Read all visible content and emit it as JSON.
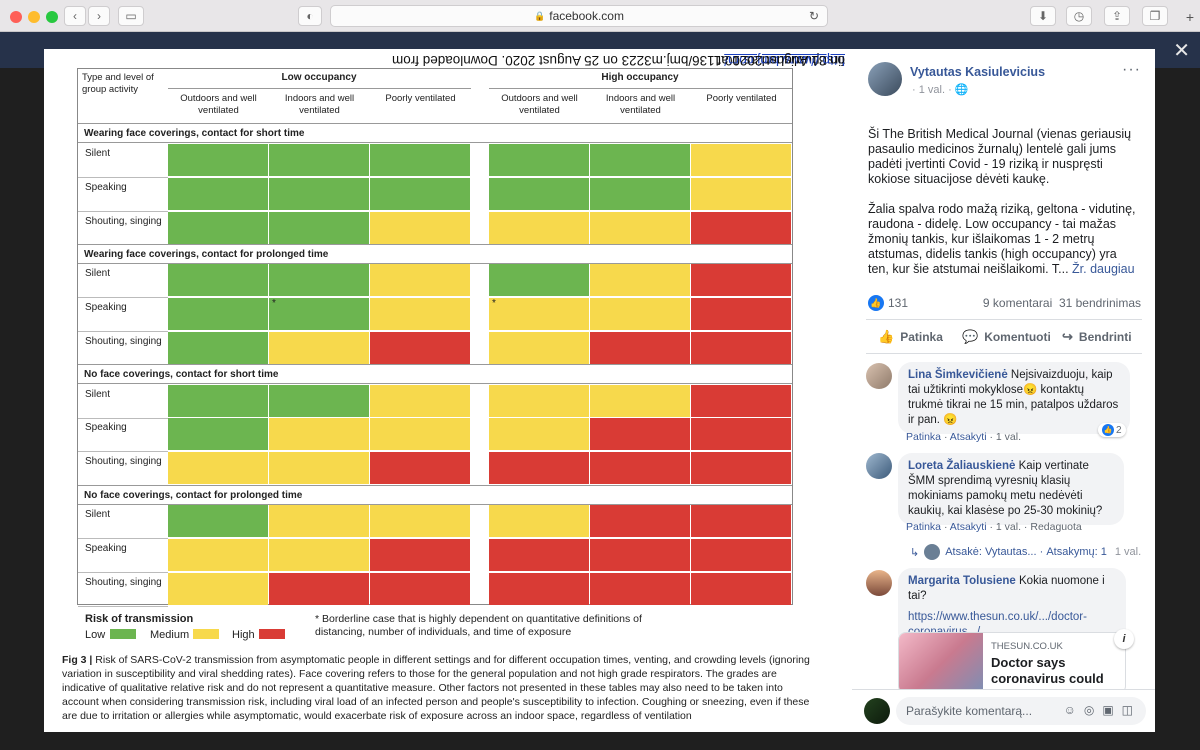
{
  "browser": {
    "url": "facebook.com",
    "back_icon": "chevron-left-icon",
    "forward_icon": "chevron-right-icon"
  },
  "figure": {
    "header": {
      "corner": "Type and level of group activity",
      "low": "Low occupancy",
      "high": "High occupancy",
      "cols": [
        "Outdoors and well ventilated",
        "Indoors and well ventilated",
        "Poorly ventilated"
      ]
    },
    "sections": [
      {
        "title": "Wearing face coverings, contact for short time",
        "rows": [
          {
            "label": "Silent",
            "low": [
              "G",
              "G",
              "G"
            ],
            "high": [
              "G",
              "G",
              "Y"
            ]
          },
          {
            "label": "Speaking",
            "low": [
              "G",
              "G",
              "G"
            ],
            "high": [
              "G",
              "G",
              "Y"
            ]
          },
          {
            "label": "Shouting, singing",
            "low": [
              "G",
              "G",
              "Y"
            ],
            "high": [
              "Y",
              "Y",
              "R"
            ]
          }
        ]
      },
      {
        "title": "Wearing face coverings, contact for prolonged time",
        "rows": [
          {
            "label": "Silent",
            "low": [
              "G",
              "G",
              "Y"
            ],
            "high": [
              "G",
              "Y",
              "R"
            ]
          },
          {
            "label": "Speaking",
            "low": [
              "G",
              "G",
              "Y"
            ],
            "high": [
              "Y",
              "Y",
              "R"
            ]
          },
          {
            "label": "Shouting, singing",
            "low": [
              "G",
              "Y",
              "R"
            ],
            "high": [
              "Y",
              "R",
              "R"
            ]
          }
        ]
      },
      {
        "title": "No face coverings, contact for short time",
        "rows": [
          {
            "label": "Silent",
            "low": [
              "G",
              "G",
              "Y"
            ],
            "high": [
              "Y",
              "Y",
              "R"
            ]
          },
          {
            "label": "Speaking",
            "low": [
              "G",
              "Y",
              "Y"
            ],
            "high": [
              "Y",
              "R",
              "R"
            ]
          },
          {
            "label": "Shouting, singing",
            "low": [
              "Y",
              "Y",
              "R"
            ],
            "high": [
              "R",
              "R",
              "R"
            ]
          }
        ]
      },
      {
        "title": "No face coverings, contact for prolonged time",
        "rows": [
          {
            "label": "Silent",
            "low": [
              "G",
              "Y",
              "Y"
            ],
            "high": [
              "Y",
              "R",
              "R"
            ]
          },
          {
            "label": "Speaking",
            "low": [
              "Y",
              "Y",
              "R"
            ],
            "high": [
              "R",
              "R",
              "R"
            ]
          },
          {
            "label": "Shouting, singing",
            "low": [
              "Y",
              "R",
              "R"
            ],
            "high": [
              "R",
              "R",
              "R"
            ]
          }
        ]
      }
    ],
    "star": "*",
    "legend": {
      "title": "Risk of transmission",
      "low": "Low",
      "medium": "Medium",
      "high": "High"
    },
    "colors": {
      "G": "#6cb550",
      "Y": "#f7d94c",
      "R": "#d93b35"
    },
    "footnote": "* Borderline case that is highly dependent on quantitative definitions of distancing, number of individuals, and time of exposure",
    "caption_bold": "Fig 3 | ",
    "caption": "Risk of SARS-CoV-2 transmission from asymptomatic people in different settings and for different occupation times, venting, and crowding levels (ignoring variation in susceptibility and viral shedding rates). Face covering refers to those for the general population and not high grade respirators. The grades are indicative of qualitative relative risk and do not represent a quantitative measure. Other factors not presented in these tables may also need to be taken into account when considering transmission risk, including viral load of an infected person and people's susceptibility to infection. Coughing or sneezing, even if these are due to irritation or allergies while asymptomatic, would exacerbate risk of exposure across an indoor space, regardless of ventilation",
    "side_pre": "first published as 10.1136/bmj.m3223 on 25 August 2020. Downloaded from ",
    "side_link": "http://www.bmj.com/",
    "side_post": " on 31 August 2020 at"
  },
  "post": {
    "author": "Vytautas Kasiulevicius",
    "meta": "· 1 val. ·",
    "text1": "Ši The British Medical Journal (vienas geriausių pasaulio medicinos žurnalų) lentelė gali jums padėti įvertinti Covid - 19 riziką ir nuspręsti kokiose situacijose dėvėti kaukę.",
    "text2": "Žalia spalva rodo mažą riziką, geltona - vidutinę, raudona - didelę. Low occupancy - tai mažas žmonių tankis, kur išlaikomas 1 - 2 metrų atstumas, didelis tankis (high occupancy) yra ten, kur šie atstumai neišlaikomi. T...",
    "see_more": "Žr. daugiau",
    "likes": "131",
    "comments_count": "9 komentarai",
    "shares_count": "31 bendrinimas",
    "actions": [
      "Patinka",
      "Komentuoti",
      "Bendrinti"
    ]
  },
  "comments": [
    {
      "name": "Lina Šimkevičienė",
      "text": "Nejsivaizduoju, kaip tai užtikrinti mokyklose😠 kontaktų trukmė tikrai ne 15 min, patalpos uždaros ir pan. 😠",
      "meta_like": "Patinka",
      "meta_reply": "Atsakyti",
      "meta_time": "1 val.",
      "reacts": "2"
    },
    {
      "name": "Loreta Žaliauskienė",
      "text": "Kaip vertinate ŠMM sprendimą vyresnių klasių mokiniams pamokų metu nedėvėti kaukių, kai klasėse po 25-30 mokinių?",
      "meta_like": "Patinka",
      "meta_reply": "Atsakyti",
      "meta_time": "1 val.",
      "meta_edit": "Redaguota"
    },
    {
      "name": "Margarita Tolusiene",
      "text": "Kokia nuomone i tai?",
      "link": "https://www.thesun.co.uk/.../doctor-coronavirus.../..."
    }
  ],
  "reply": {
    "label": "Atsakė: Vytautas...",
    "count": "Atsakymų: 1",
    "time": "1 val."
  },
  "card": {
    "source": "THESUN.CO.UK",
    "title": "Doctor says coronavirus could"
  },
  "composer": {
    "placeholder": "Parašykite komentarą..."
  }
}
